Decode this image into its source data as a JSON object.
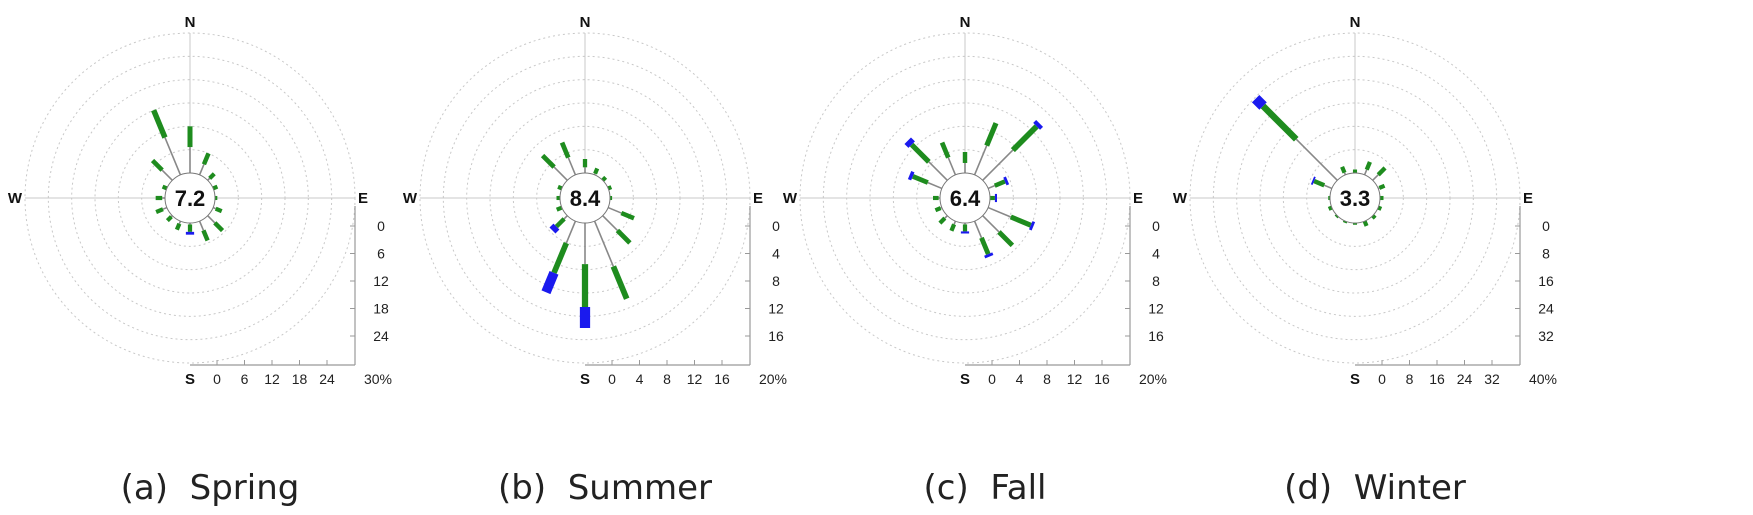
{
  "chart_data": [
    {
      "type": "wind-rose",
      "caption": "(a)  Spring",
      "calm": "7.2",
      "directions": [
        "N",
        "E",
        "S",
        "W"
      ],
      "ticks": [
        "0",
        "6",
        "12",
        "18",
        "24"
      ],
      "unit_label": "30%",
      "max": 30,
      "sectors": [
        {
          "angle": 0,
          "value": 10,
          "blue": 0
        },
        {
          "angle": 22.5,
          "value": 5,
          "blue": 0
        },
        {
          "angle": 45,
          "value": 2,
          "blue": 0
        },
        {
          "angle": 67.5,
          "value": 1,
          "blue": 0
        },
        {
          "angle": 90,
          "value": 0.5,
          "blue": 0
        },
        {
          "angle": 112.5,
          "value": 2,
          "blue": 0
        },
        {
          "angle": 135,
          "value": 4.5,
          "blue": 0
        },
        {
          "angle": 157.5,
          "value": 4.5,
          "blue": 0
        },
        {
          "angle": 180,
          "value": 2.5,
          "blue": 0.6
        },
        {
          "angle": 202.5,
          "value": 2,
          "blue": 0
        },
        {
          "angle": 225,
          "value": 1.5,
          "blue": 0
        },
        {
          "angle": 247.5,
          "value": 2.5,
          "blue": 0
        },
        {
          "angle": 270,
          "value": 2,
          "blue": 0
        },
        {
          "angle": 292.5,
          "value": 1,
          "blue": 0
        },
        {
          "angle": 315,
          "value": 6,
          "blue": 0
        },
        {
          "angle": 337.5,
          "value": 15,
          "blue": 0
        }
      ]
    },
    {
      "type": "wind-rose",
      "caption": "(b)  Summer",
      "calm": "8.4",
      "directions": [
        "N",
        "E",
        "S",
        "W"
      ],
      "ticks": [
        "0",
        "4",
        "8",
        "12",
        "16"
      ],
      "unit_label": "20%",
      "max": 20,
      "sectors": [
        {
          "angle": 0,
          "value": 2,
          "blue": 0
        },
        {
          "angle": 22.5,
          "value": 1,
          "blue": 0
        },
        {
          "angle": 45,
          "value": 0.6,
          "blue": 0
        },
        {
          "angle": 67.5,
          "value": 0.5,
          "blue": 0
        },
        {
          "angle": 90,
          "value": 0.3,
          "blue": 0
        },
        {
          "angle": 112.5,
          "value": 4,
          "blue": 0
        },
        {
          "angle": 135,
          "value": 5.5,
          "blue": 0
        },
        {
          "angle": 157.5,
          "value": 12,
          "blue": 0
        },
        {
          "angle": 180,
          "value": 15,
          "blue": 3
        },
        {
          "angle": 202.5,
          "value": 11,
          "blue": 3
        },
        {
          "angle": 225,
          "value": 3,
          "blue": 0.8
        },
        {
          "angle": 247.5,
          "value": 0.8,
          "blue": 0
        },
        {
          "angle": 270,
          "value": 0.5,
          "blue": 0
        },
        {
          "angle": 292.5,
          "value": 0.6,
          "blue": 0
        },
        {
          "angle": 315,
          "value": 5,
          "blue": 0
        },
        {
          "angle": 337.5,
          "value": 5,
          "blue": 0
        }
      ]
    },
    {
      "type": "wind-rose",
      "caption": "(c)  Fall",
      "calm": "6.4",
      "directions": [
        "N",
        "E",
        "S",
        "W"
      ],
      "ticks": [
        "0",
        "4",
        "8",
        "12",
        "16"
      ],
      "unit_label": "20%",
      "max": 20,
      "sectors": [
        {
          "angle": 0,
          "value": 3,
          "blue": 0
        },
        {
          "angle": 22.5,
          "value": 8,
          "blue": 0
        },
        {
          "angle": 45,
          "value": 11.5,
          "blue": 0.6
        },
        {
          "angle": 67.5,
          "value": 3,
          "blue": 0.4
        },
        {
          "angle": 90,
          "value": 1,
          "blue": 0.3
        },
        {
          "angle": 112.5,
          "value": 7,
          "blue": 0.4
        },
        {
          "angle": 135,
          "value": 6,
          "blue": 0
        },
        {
          "angle": 157.5,
          "value": 5.5,
          "blue": 0.4
        },
        {
          "angle": 180,
          "value": 1.5,
          "blue": 0.3
        },
        {
          "angle": 202.5,
          "value": 1.5,
          "blue": 0
        },
        {
          "angle": 225,
          "value": 1.5,
          "blue": 0
        },
        {
          "angle": 247.5,
          "value": 1,
          "blue": 0
        },
        {
          "angle": 270,
          "value": 1,
          "blue": 0
        },
        {
          "angle": 292.5,
          "value": 5,
          "blue": 0.5
        },
        {
          "angle": 315,
          "value": 8,
          "blue": 0.8
        },
        {
          "angle": 337.5,
          "value": 5,
          "blue": 0
        }
      ]
    },
    {
      "type": "wind-rose",
      "caption": "(d)  Winter",
      "calm": "3.3",
      "directions": [
        "N",
        "E",
        "S",
        "W"
      ],
      "ticks": [
        "0",
        "8",
        "16",
        "24",
        "32"
      ],
      "unit_label": "40%",
      "max": 40,
      "sectors": [
        {
          "angle": 0,
          "value": 1,
          "blue": 0
        },
        {
          "angle": 22.5,
          "value": 4,
          "blue": 0
        },
        {
          "angle": 45,
          "value": 5,
          "blue": 0
        },
        {
          "angle": 67.5,
          "value": 2,
          "blue": 0
        },
        {
          "angle": 90,
          "value": 1,
          "blue": 0
        },
        {
          "angle": 112.5,
          "value": 1,
          "blue": 0
        },
        {
          "angle": 135,
          "value": 1,
          "blue": 0
        },
        {
          "angle": 157.5,
          "value": 1.5,
          "blue": 0
        },
        {
          "angle": 180,
          "value": 0.5,
          "blue": 0
        },
        {
          "angle": 202.5,
          "value": 0.5,
          "blue": 0
        },
        {
          "angle": 225,
          "value": 0.5,
          "blue": 0
        },
        {
          "angle": 247.5,
          "value": 1,
          "blue": 0
        },
        {
          "angle": 270,
          "value": 0.5,
          "blue": 0
        },
        {
          "angle": 292.5,
          "value": 6,
          "blue": 0.5
        },
        {
          "angle": 315,
          "value": 33,
          "blue": 3
        },
        {
          "angle": 337.5,
          "value": 2.5,
          "blue": 0
        }
      ]
    }
  ],
  "colors": {
    "green": "#1e8c1e",
    "blue": "#1a1aee",
    "spoke": "#888888",
    "ring": "#c8c8c8",
    "axis": "#999999"
  }
}
